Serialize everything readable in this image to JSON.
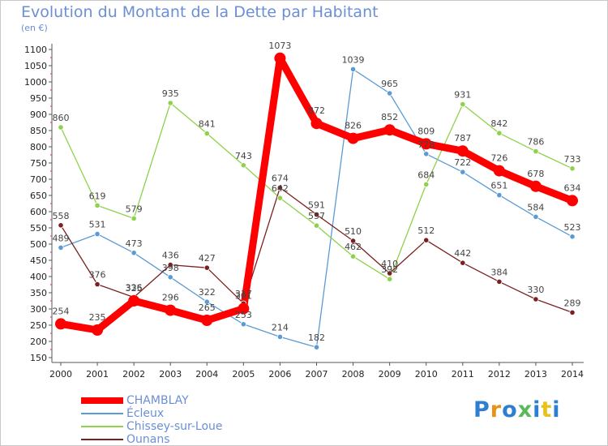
{
  "title": "Evolution du Montant de la Dette par Habitant",
  "unit": "(en €)",
  "logo": "Proxiti",
  "chart_data": {
    "type": "line",
    "title": "Evolution du Montant de la Dette par Habitant",
    "ylabel": "(en €)",
    "x": [
      "2000",
      "2001",
      "2002",
      "2003",
      "2004",
      "2005",
      "2006",
      "2007",
      "2008",
      "2009",
      "2010",
      "2011",
      "2012",
      "2013",
      "2014"
    ],
    "ylim": [
      150,
      1100
    ],
    "yticks": [
      150,
      200,
      250,
      300,
      350,
      400,
      450,
      500,
      550,
      600,
      650,
      700,
      750,
      800,
      850,
      900,
      950,
      1000,
      1050,
      1100
    ],
    "grid": false,
    "legend": "bottom-left",
    "series": [
      {
        "name": "CHAMBLAY",
        "color": "#ff0000",
        "values": [
          254,
          235,
          325,
          296,
          265,
          301,
          1073,
          872,
          826,
          852,
          809,
          787,
          726,
          678,
          634
        ],
        "labels": [
          "254",
          "235",
          "325",
          "296",
          "265",
          "301",
          "1073",
          "872",
          "826",
          "852",
          "809",
          "787",
          "726",
          "678",
          "634"
        ]
      },
      {
        "name": "Écleux",
        "color": "#5b9bd5",
        "values": [
          489,
          531,
          473,
          398,
          322,
          253,
          214,
          182,
          1039,
          965,
          778,
          722,
          651,
          584,
          523
        ],
        "labels": [
          "489",
          "531",
          "473",
          "398",
          "322",
          "253",
          "214",
          "182",
          "1039",
          "965",
          "778",
          "722",
          "651",
          "584",
          "523"
        ]
      },
      {
        "name": "Chissey-sur-Loue",
        "color": "#8ed14a",
        "values": [
          860,
          619,
          579,
          935,
          841,
          743,
          642,
          557,
          462,
          392,
          684,
          931,
          842,
          786,
          733
        ],
        "labels": [
          "860",
          "619",
          "579",
          "935",
          "841",
          "743",
          "642",
          "557",
          "462",
          "392",
          "684",
          "931",
          "842",
          "786",
          "733"
        ]
      },
      {
        "name": "Ounans",
        "color": "#7a2020",
        "values": [
          558,
          376,
          336,
          436,
          427,
          317,
          674,
          591,
          510,
          410,
          512,
          442,
          384,
          330,
          289
        ],
        "labels": [
          "558",
          "376",
          "336",
          "436",
          "427",
          "317",
          "674",
          "591",
          "510",
          "410",
          "512",
          "442",
          "384",
          "330",
          "289"
        ]
      }
    ]
  }
}
